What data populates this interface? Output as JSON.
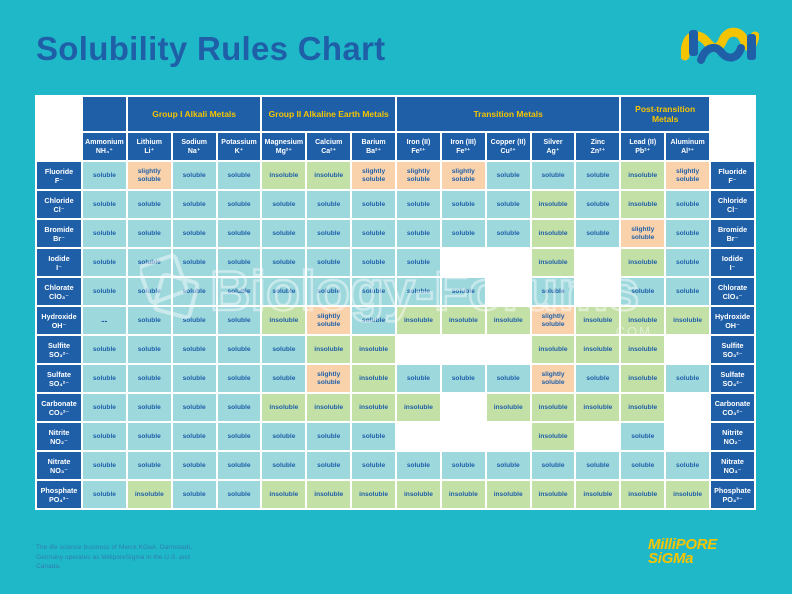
{
  "title": "Solubility Rules Chart",
  "groups": [
    {
      "label": "",
      "span": 1
    },
    {
      "label": "Group I Alkali Metals",
      "span": 3
    },
    {
      "label": "Group II Alkaline Earth Metals",
      "span": 3
    },
    {
      "label": "Transition Metals",
      "span": 5
    },
    {
      "label": "Post-transition Metals",
      "span": 2
    }
  ],
  "columns": [
    {
      "name": "Ammonium",
      "formula": "NH₄⁺"
    },
    {
      "name": "Lithium",
      "formula": "Li⁺"
    },
    {
      "name": "Sodium",
      "formula": "Na⁺"
    },
    {
      "name": "Potassium",
      "formula": "K⁺"
    },
    {
      "name": "Magnesium",
      "formula": "Mg²⁺"
    },
    {
      "name": "Calcium",
      "formula": "Ca²⁺"
    },
    {
      "name": "Barium",
      "formula": "Ba²⁺"
    },
    {
      "name": "Iron (II)",
      "formula": "Fe²⁺"
    },
    {
      "name": "Iron (III)",
      "formula": "Fe³⁺"
    },
    {
      "name": "Copper (II)",
      "formula": "Cu²⁺"
    },
    {
      "name": "Silver",
      "formula": "Ag⁺"
    },
    {
      "name": "Zinc",
      "formula": "Zn²⁺"
    },
    {
      "name": "Lead (II)",
      "formula": "Pb²⁺"
    },
    {
      "name": "Aluminum",
      "formula": "Al³⁺"
    }
  ],
  "rows": [
    {
      "name": "Fluoride",
      "formula": "F⁻",
      "cells": [
        "soluble",
        "slightly soluble",
        "soluble",
        "soluble",
        "insoluble",
        "insoluble",
        "slightly soluble",
        "slightly soluble",
        "slightly soluble",
        "soluble",
        "soluble",
        "soluble",
        "insoluble",
        "slightly soluble"
      ]
    },
    {
      "name": "Chloride",
      "formula": "Cl⁻",
      "cells": [
        "soluble",
        "soluble",
        "soluble",
        "soluble",
        "soluble",
        "soluble",
        "soluble",
        "soluble",
        "soluble",
        "soluble",
        "insoluble",
        "soluble",
        "insoluble",
        "soluble"
      ]
    },
    {
      "name": "Bromide",
      "formula": "Br⁻",
      "cells": [
        "soluble",
        "soluble",
        "soluble",
        "soluble",
        "soluble",
        "soluble",
        "soluble",
        "soluble",
        "soluble",
        "soluble",
        "insoluble",
        "soluble",
        "slightly soluble",
        "soluble"
      ]
    },
    {
      "name": "Iodide",
      "formula": "I⁻",
      "cells": [
        "soluble",
        "soluble",
        "soluble",
        "soluble",
        "soluble",
        "soluble",
        "soluble",
        "soluble",
        "",
        "",
        "insoluble",
        "",
        "insoluble",
        "soluble"
      ]
    },
    {
      "name": "Chlorate",
      "formula": "ClO₃⁻",
      "cells": [
        "soluble",
        "soluble",
        "soluble",
        "soluble",
        "soluble",
        "soluble",
        "soluble",
        "soluble",
        "soluble",
        "",
        "soluble",
        "",
        "soluble",
        "soluble"
      ]
    },
    {
      "name": "Hydroxide",
      "formula": "OH⁻",
      "cells": [
        "--",
        "soluble",
        "soluble",
        "soluble",
        "insoluble",
        "slightly soluble",
        "soluble",
        "insoluble",
        "insoluble",
        "insoluble",
        "slightly soluble",
        "insoluble",
        "insoluble",
        "insoluble"
      ]
    },
    {
      "name": "Sulfite",
      "formula": "SO₃²⁻",
      "cells": [
        "soluble",
        "soluble",
        "soluble",
        "soluble",
        "soluble",
        "insoluble",
        "insoluble",
        "",
        "",
        "",
        "insoluble",
        "insoluble",
        "insoluble",
        ""
      ]
    },
    {
      "name": "Sulfate",
      "formula": "SO₄²⁻",
      "cells": [
        "soluble",
        "soluble",
        "soluble",
        "soluble",
        "soluble",
        "slightly soluble",
        "insoluble",
        "soluble",
        "soluble",
        "soluble",
        "slightly soluble",
        "soluble",
        "insoluble",
        "soluble"
      ]
    },
    {
      "name": "Carbonate",
      "formula": "CO₃²⁻",
      "cells": [
        "soluble",
        "soluble",
        "soluble",
        "soluble",
        "insoluble",
        "insoluble",
        "insoluble",
        "insoluble",
        "",
        "insoluble",
        "insoluble",
        "insoluble",
        "insoluble",
        ""
      ]
    },
    {
      "name": "Nitrite",
      "formula": "NO₂⁻",
      "cells": [
        "soluble",
        "soluble",
        "soluble",
        "soluble",
        "soluble",
        "soluble",
        "soluble",
        "",
        "",
        "",
        "insoluble",
        "",
        "soluble",
        ""
      ]
    },
    {
      "name": "Nitrate",
      "formula": "NO₃⁻",
      "cells": [
        "soluble",
        "soluble",
        "soluble",
        "soluble",
        "soluble",
        "soluble",
        "soluble",
        "soluble",
        "soluble",
        "soluble",
        "soluble",
        "soluble",
        "soluble",
        "soluble"
      ]
    },
    {
      "name": "Phosphate",
      "formula": "PO₄³⁻",
      "cells": [
        "soluble",
        "insoluble",
        "soluble",
        "soluble",
        "insoluble",
        "insoluble",
        "insoluble",
        "insoluble",
        "insoluble",
        "insoluble",
        "insoluble",
        "insoluble",
        "insoluble",
        "insoluble"
      ]
    }
  ],
  "colors": {
    "background": "#1fb8c9",
    "header_blue": "#1f5fa8",
    "group_text": "#f5c400",
    "soluble": "#9dd8dd",
    "insoluble": "#c3e0a7",
    "slightly_soluble": "#f9d2ac"
  },
  "watermark": {
    "text": "Biology-Forums",
    "domain": ".COM"
  },
  "footer": {
    "text": "The life science business of Merck KGaA, Darmstadt, Germany operates as MilliporeSigma in the U.S. and Canada."
  },
  "brand": {
    "line1": "MilliPORE",
    "line2": "SiGMa"
  },
  "icons": {
    "brand_mark": "merck-m-logo-icon",
    "watermark": "biology-forums-watermark-icon"
  }
}
